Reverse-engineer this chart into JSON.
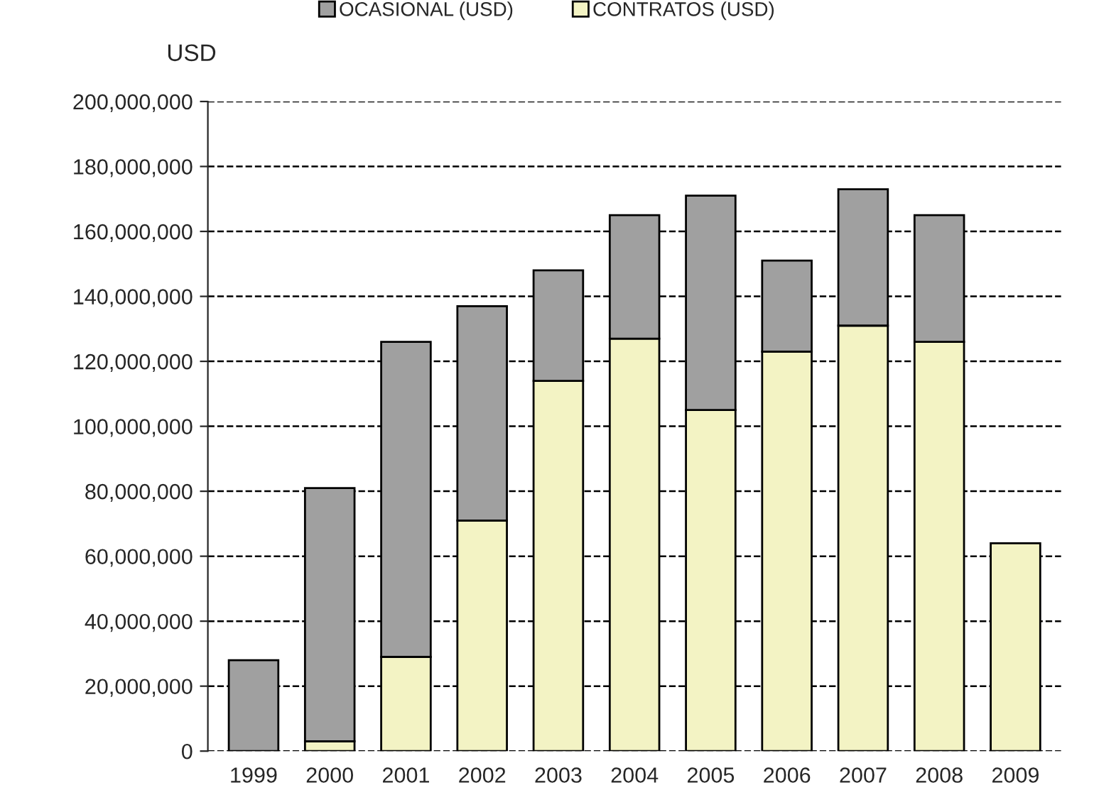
{
  "chart_data": {
    "type": "bar",
    "stacked": true,
    "ylabel": "USD",
    "categories": [
      "1999",
      "2000",
      "2001",
      "2002",
      "2003",
      "2004",
      "2005",
      "2006",
      "2007",
      "2008",
      "2009"
    ],
    "series": [
      {
        "name": "CONTRATOS (USD)",
        "color": "#f3f3c4",
        "values": [
          null,
          3000000,
          29000000,
          71000000,
          114000000,
          127000000,
          105000000,
          123000000,
          131000000,
          126000000,
          64000000
        ]
      },
      {
        "name": "OCASIONAL (USD)",
        "color": "#a0a0a0",
        "values": [
          28000000,
          78000000,
          97000000,
          66000000,
          34000000,
          38000000,
          66000000,
          28000000,
          42000000,
          39000000,
          null
        ]
      }
    ],
    "ylim": [
      0,
      200000000
    ],
    "yticks": [
      0,
      {
        "value": 20000000,
        "label": "20,000,000"
      },
      {
        "value": 40000000,
        "label": "40,000,000"
      },
      {
        "value": 60000000,
        "label": "60,000,000"
      },
      {
        "value": 80000000,
        "label": "80,000,000"
      },
      {
        "value": 100000000,
        "label": "100,000,000"
      },
      {
        "value": 120000000,
        "label": "120,000,000"
      },
      {
        "value": 140000000,
        "label": "140,000,000"
      },
      {
        "value": 160000000,
        "label": "160,000,000"
      },
      {
        "value": 180000000,
        "label": "180,000,000"
      },
      {
        "value": 200000000,
        "label": "200,000,000"
      }
    ],
    "grid": "y",
    "legend": "top"
  }
}
